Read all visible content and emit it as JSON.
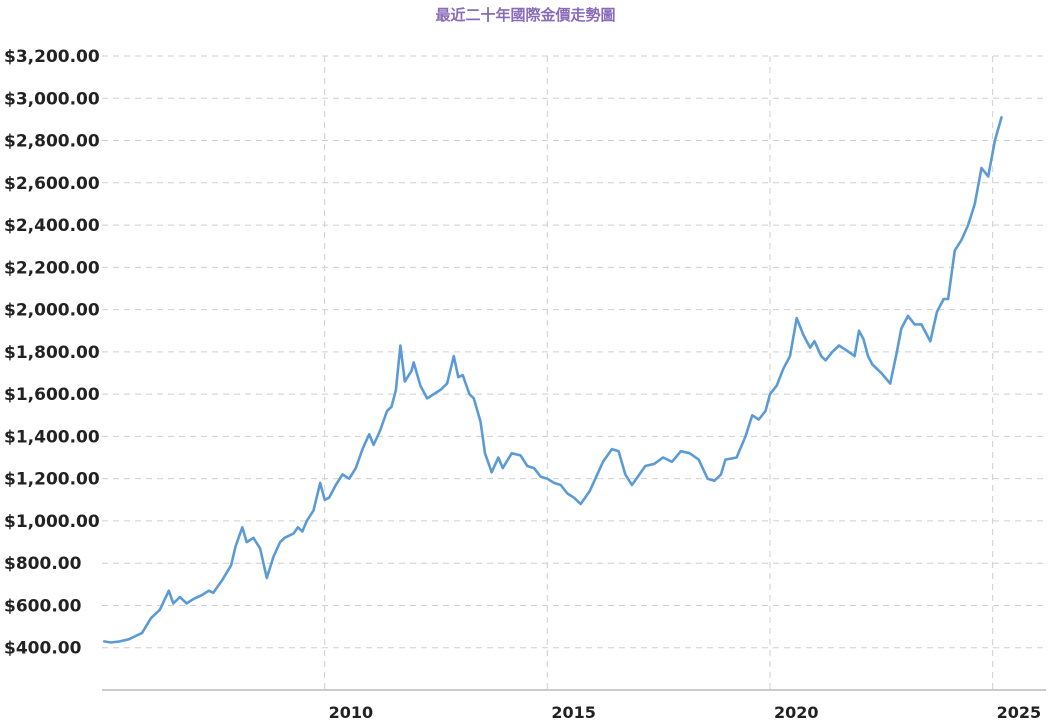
{
  "chart_data": {
    "type": "line",
    "title": "最近二十年國際金價走勢圖",
    "xlabel": "",
    "ylabel": "",
    "xlim": [
      2005.0,
      2025.3
    ],
    "ylim": [
      200,
      3200
    ],
    "y_ticks": [
      400,
      600,
      800,
      1000,
      1200,
      1400,
      1600,
      1800,
      2000,
      2200,
      2400,
      2600,
      2800,
      3000,
      3200
    ],
    "y_tick_labels": [
      "$400.00",
      "$600.00",
      "$800.00",
      "$1,000.00",
      "$1,200.00",
      "$1,400.00",
      "$1,600.00",
      "$1,800.00",
      "$2,000.00",
      "$2,200.00",
      "$2,400.00",
      "$2,600.00",
      "$2,800.00",
      "$3,000.00",
      "$3,200.00"
    ],
    "x_ticks": [
      2010,
      2015,
      2020,
      2025
    ],
    "x_tick_labels": [
      "2010",
      "2015",
      "2020",
      "2025"
    ],
    "grid": true,
    "series": [
      {
        "color": "#5b9bd5",
        "x": [
          2005.05,
          2005.2,
          2005.4,
          2005.6,
          2005.9,
          2006.1,
          2006.3,
          2006.5,
          2006.6,
          2006.75,
          2006.9,
          2007.05,
          2007.25,
          2007.4,
          2007.5,
          2007.7,
          2007.9,
          2008.0,
          2008.15,
          2008.25,
          2008.4,
          2008.55,
          2008.7,
          2008.85,
          2009.0,
          2009.1,
          2009.3,
          2009.4,
          2009.5,
          2009.6,
          2009.75,
          2009.9,
          2010.0,
          2010.1,
          2010.25,
          2010.4,
          2010.55,
          2010.7,
          2010.85,
          2011.0,
          2011.1,
          2011.25,
          2011.4,
          2011.5,
          2011.6,
          2011.7,
          2011.8,
          2011.95,
          2012.0,
          2012.15,
          2012.3,
          2012.45,
          2012.6,
          2012.75,
          2012.9,
          2013.0,
          2013.1,
          2013.25,
          2013.35,
          2013.5,
          2013.6,
          2013.75,
          2013.9,
          2014.0,
          2014.2,
          2014.4,
          2014.55,
          2014.7,
          2014.85,
          2015.0,
          2015.15,
          2015.3,
          2015.45,
          2015.6,
          2015.75,
          2015.95,
          2016.1,
          2016.25,
          2016.45,
          2016.6,
          2016.75,
          2016.9,
          2017.0,
          2017.2,
          2017.4,
          2017.6,
          2017.8,
          2018.0,
          2018.2,
          2018.4,
          2018.6,
          2018.75,
          2018.9,
          2019.0,
          2019.25,
          2019.45,
          2019.6,
          2019.75,
          2019.9,
          2020.0,
          2020.15,
          2020.3,
          2020.45,
          2020.6,
          2020.75,
          2020.9,
          2021.0,
          2021.15,
          2021.25,
          2021.4,
          2021.55,
          2021.7,
          2021.9,
          2022.0,
          2022.1,
          2022.2,
          2022.3,
          2022.5,
          2022.7,
          2022.85,
          2022.95,
          2023.1,
          2023.25,
          2023.4,
          2023.6,
          2023.75,
          2023.9,
          2024.0,
          2024.15,
          2024.3,
          2024.45,
          2024.6,
          2024.75,
          2024.9,
          2025.05,
          2025.2
        ],
        "y": [
          430,
          425,
          430,
          440,
          470,
          540,
          580,
          670,
          610,
          640,
          610,
          630,
          650,
          670,
          660,
          720,
          790,
          880,
          970,
          900,
          920,
          870,
          730,
          830,
          900,
          920,
          940,
          970,
          950,
          1000,
          1050,
          1180,
          1100,
          1110,
          1170,
          1220,
          1200,
          1250,
          1340,
          1410,
          1360,
          1430,
          1520,
          1540,
          1620,
          1830,
          1660,
          1710,
          1750,
          1640,
          1580,
          1600,
          1620,
          1650,
          1780,
          1680,
          1690,
          1600,
          1580,
          1470,
          1320,
          1230,
          1300,
          1250,
          1320,
          1310,
          1260,
          1250,
          1210,
          1200,
          1180,
          1170,
          1130,
          1110,
          1080,
          1140,
          1210,
          1280,
          1340,
          1330,
          1220,
          1170,
          1200,
          1260,
          1270,
          1300,
          1280,
          1330,
          1320,
          1290,
          1200,
          1190,
          1220,
          1290,
          1300,
          1400,
          1500,
          1480,
          1520,
          1600,
          1640,
          1720,
          1780,
          1960,
          1880,
          1820,
          1850,
          1780,
          1760,
          1800,
          1830,
          1810,
          1780,
          1900,
          1860,
          1780,
          1740,
          1700,
          1650,
          1800,
          1910,
          1970,
          1930,
          1930,
          1850,
          1990,
          2050,
          2050,
          2280,
          2330,
          2400,
          2500,
          2670,
          2630,
          2800,
          2910
        ]
      }
    ]
  }
}
